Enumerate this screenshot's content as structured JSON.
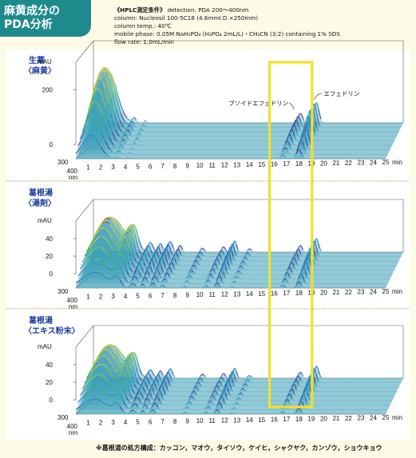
{
  "header": {
    "title_line1": "麻黄成分の",
    "title_line2": "PDA分析"
  },
  "conditions": {
    "title": "《HPLC測定条件》",
    "detection": "detection: PDA 200～400nm",
    "column": "column: Nucleosil 100-5C18 (4.6mmI.D.×250mm)",
    "temp": "column temp.: 40℃",
    "mobile_phase": "mobile phase: 0.05M NaH₂PO₄ (H₃PO₄ 2mL/L)・CH₃CN (3:2) containing 1% SDS",
    "flow_rate": "flow rate: 1.0mL/min"
  },
  "footnote": "※葛根湯の処方構成：カッコン，マオウ，タイソウ，ケイヒ，シャクヤク，カンゾウ，ショウキョウ",
  "highlight": {
    "color": "#f2e12a",
    "x_range_min": [
      15.5,
      19.0
    ]
  },
  "colors": {
    "header_bg": "#1e8a8c",
    "page_bg": "#fdfbe6",
    "panel_bg": "#ffffff",
    "divider": "#aaaaaa",
    "title_text": "#1a3b9c",
    "surface_base": "#3a9fb8"
  },
  "chart_data": [
    {
      "type": "3d-surface",
      "title_line1": "生薬",
      "title_line2": "〈麻黄〉",
      "y_unit": "mAU",
      "y_ticks": [
        "0",
        "200"
      ],
      "y_values": [
        0,
        200
      ],
      "ylim": [
        0,
        300
      ],
      "wavelength_unit": "nm",
      "wavelength_ticks": [
        "300",
        "400"
      ],
      "x_unit": "min",
      "x_ticks": [
        "1",
        "2",
        "3",
        "4",
        "5",
        "6",
        "7",
        "8",
        "9",
        "10",
        "11",
        "12",
        "13",
        "14",
        "15",
        "16",
        "17",
        "18",
        "19",
        "20",
        "21",
        "22",
        "23",
        "24",
        "25"
      ],
      "xlim": [
        0,
        25
      ],
      "peaks": [
        {
          "t": 1.2,
          "h": 240,
          "w": 0.7
        },
        {
          "t": 3.3,
          "h": 22,
          "w": 0.15
        },
        {
          "t": 4.2,
          "h": 12,
          "w": 0.12
        },
        {
          "t": 16.7,
          "h": 45,
          "w": 0.18
        },
        {
          "t": 18.0,
          "h": 95,
          "w": 0.2
        }
      ],
      "annotations": [
        {
          "text": "プソイドエフェドリン",
          "t": 16.7
        },
        {
          "text": "エフェドリン",
          "t": 18.0
        }
      ]
    },
    {
      "type": "3d-surface",
      "title_line1": "葛根湯",
      "title_line2": "〈湯剤〉",
      "y_unit": "mAU",
      "y_ticks": [
        "0",
        "20",
        "40"
      ],
      "y_values": [
        0,
        20,
        40
      ],
      "ylim": [
        0,
        60
      ],
      "wavelength_unit": "nm",
      "wavelength_ticks": [
        "300",
        "400"
      ],
      "x_unit": "min",
      "x_ticks": [
        "1",
        "2",
        "3",
        "4",
        "5",
        "6",
        "7",
        "8",
        "9",
        "10",
        "11",
        "12",
        "13",
        "14",
        "15",
        "16",
        "17",
        "18",
        "19",
        "20",
        "21",
        "22",
        "23",
        "24",
        "25"
      ],
      "xlim": [
        0,
        25
      ],
      "peaks": [
        {
          "t": 1.5,
          "h": 50,
          "w": 1.0
        },
        {
          "t": 3.3,
          "h": 30,
          "w": 0.3
        },
        {
          "t": 4.6,
          "h": 14,
          "w": 0.2
        },
        {
          "t": 5.4,
          "h": 13,
          "w": 0.15
        },
        {
          "t": 6.2,
          "h": 16,
          "w": 0.18
        },
        {
          "t": 7.0,
          "h": 10,
          "w": 0.15
        },
        {
          "t": 8.8,
          "h": 6,
          "w": 0.15
        },
        {
          "t": 10.5,
          "h": 8,
          "w": 0.15
        },
        {
          "t": 11.4,
          "h": 17,
          "w": 0.15
        },
        {
          "t": 12.6,
          "h": 5,
          "w": 0.15
        },
        {
          "t": 16.7,
          "h": 10,
          "w": 0.15
        },
        {
          "t": 18.0,
          "h": 20,
          "w": 0.17
        }
      ]
    },
    {
      "type": "3d-surface",
      "title_line1": "葛根湯",
      "title_line2": "〈エキス粉末〉",
      "y_unit": "mAU",
      "y_ticks": [
        "0",
        "20",
        "40"
      ],
      "y_values": [
        0,
        20,
        40
      ],
      "ylim": [
        0,
        60
      ],
      "wavelength_unit": "nm",
      "wavelength_ticks": [
        "300",
        "400"
      ],
      "x_unit": "min",
      "x_ticks": [
        "1",
        "2",
        "3",
        "4",
        "5",
        "6",
        "7",
        "8",
        "9",
        "10",
        "11",
        "12",
        "13",
        "14",
        "15",
        "16",
        "17",
        "18",
        "19",
        "20",
        "21",
        "22",
        "23",
        "24",
        "25"
      ],
      "xlim": [
        0,
        25
      ],
      "peaks": [
        {
          "t": 1.5,
          "h": 48,
          "w": 1.0
        },
        {
          "t": 3.3,
          "h": 28,
          "w": 0.3
        },
        {
          "t": 4.6,
          "h": 12,
          "w": 0.2
        },
        {
          "t": 5.4,
          "h": 11,
          "w": 0.15
        },
        {
          "t": 6.2,
          "h": 14,
          "w": 0.18
        },
        {
          "t": 8.8,
          "h": 6,
          "w": 0.15
        },
        {
          "t": 10.5,
          "h": 7,
          "w": 0.15
        },
        {
          "t": 11.4,
          "h": 15,
          "w": 0.15
        },
        {
          "t": 12.6,
          "h": 4,
          "w": 0.15
        },
        {
          "t": 16.7,
          "h": 9,
          "w": 0.15
        },
        {
          "t": 18.0,
          "h": 18,
          "w": 0.17
        }
      ]
    }
  ]
}
